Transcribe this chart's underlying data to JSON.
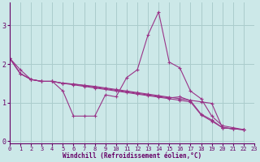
{
  "xlabel": "Windchill (Refroidissement éolien,°C)",
  "bg_color": "#cce8e8",
  "line_color": "#993388",
  "grid_color": "#aacccc",
  "spine_color": "#660066",
  "tick_color": "#660066",
  "label_color": "#660066",
  "xticks": [
    0,
    1,
    2,
    3,
    4,
    5,
    6,
    7,
    8,
    9,
    10,
    11,
    12,
    13,
    14,
    15,
    16,
    17,
    18,
    19,
    20,
    21,
    22,
    23
  ],
  "yticks": [
    0,
    1,
    2,
    3
  ],
  "xlim": [
    0,
    23
  ],
  "ylim": [
    -0.05,
    3.6
  ],
  "series": [
    {
      "x": [
        0,
        1,
        2,
        3,
        4,
        5,
        6,
        7,
        8,
        9,
        10,
        11,
        12,
        13,
        14,
        15,
        16,
        17,
        18,
        19,
        20,
        21,
        22
      ],
      "y": [
        2.15,
        1.85,
        1.6,
        1.55,
        1.55,
        1.3,
        0.65,
        0.65,
        0.65,
        1.2,
        1.15,
        1.65,
        1.85,
        2.75,
        3.35,
        2.05,
        1.9,
        1.3,
        1.1,
        0.65,
        0.4,
        0.35,
        0.3
      ]
    },
    {
      "x": [
        0,
        1,
        2,
        3,
        4,
        5,
        6,
        7,
        8,
        9,
        10,
        11,
        12,
        13,
        14,
        15,
        16,
        17,
        18,
        19,
        20,
        21,
        22
      ],
      "y": [
        2.15,
        1.75,
        1.6,
        1.55,
        1.55,
        1.5,
        1.48,
        1.45,
        1.42,
        1.38,
        1.34,
        1.3,
        1.26,
        1.22,
        1.18,
        1.14,
        1.1,
        1.06,
        1.02,
        0.98,
        0.35,
        0.32,
        0.3
      ]
    },
    {
      "x": [
        0,
        1,
        2,
        3,
        4,
        5,
        6,
        7,
        8,
        9,
        10,
        11,
        12,
        13,
        14,
        15,
        16,
        17,
        18,
        19,
        20,
        21,
        22
      ],
      "y": [
        2.15,
        1.75,
        1.6,
        1.55,
        1.55,
        1.5,
        1.48,
        1.44,
        1.4,
        1.36,
        1.32,
        1.28,
        1.24,
        1.2,
        1.16,
        1.12,
        1.15,
        1.05,
        0.7,
        0.55,
        0.35,
        0.32,
        0.3
      ]
    },
    {
      "x": [
        0,
        1,
        2,
        3,
        4,
        5,
        6,
        7,
        8,
        9,
        10,
        11,
        12,
        13,
        14,
        15,
        16,
        17,
        18,
        19,
        20,
        21,
        22
      ],
      "y": [
        2.15,
        1.75,
        1.6,
        1.55,
        1.55,
        1.5,
        1.46,
        1.42,
        1.38,
        1.34,
        1.3,
        1.26,
        1.22,
        1.18,
        1.14,
        1.1,
        1.06,
        1.02,
        0.68,
        0.52,
        0.35,
        0.32,
        0.3
      ]
    }
  ]
}
